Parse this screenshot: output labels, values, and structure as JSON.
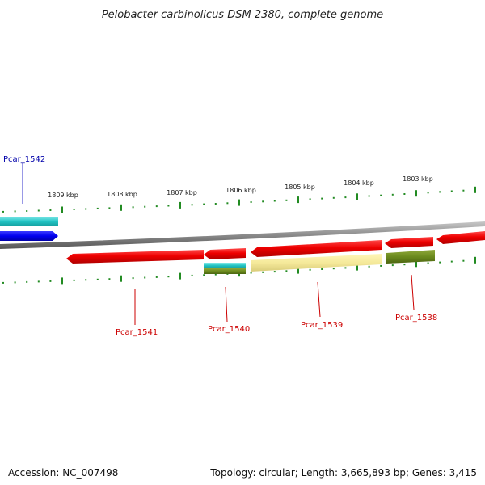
{
  "title": "Pelobacter carbinolicus DSM 2380, complete genome",
  "scale_unit": "kbp",
  "tick_labels": [
    "1809 kbp",
    "1808 kbp",
    "1807 kbp",
    "1806 kbp",
    "1805 kbp",
    "1804 kbp",
    "1803 kbp"
  ],
  "genes": [
    {
      "name": "Pcar_1542",
      "strand": "+",
      "color": "#0000cc"
    },
    {
      "name": "Pcar_1541",
      "strand": "-",
      "color": "#cc0000"
    },
    {
      "name": "Pcar_1540",
      "strand": "-",
      "color": "#cc0000"
    },
    {
      "name": "Pcar_1539",
      "strand": "-",
      "color": "#cc0000"
    },
    {
      "name": "Pcar_1538",
      "strand": "-",
      "color": "#cc0000"
    }
  ],
  "footer": {
    "accession": "Accession: NC_007498",
    "topology": "Topology: circular; Length: 3,665,893 bp; Genes: 3,415"
  }
}
